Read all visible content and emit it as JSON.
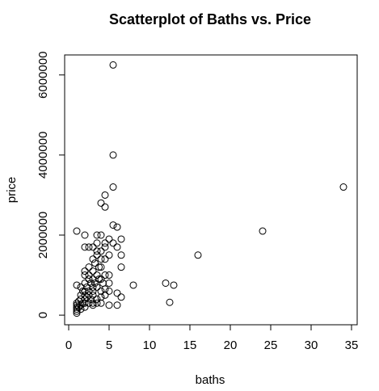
{
  "chart_data": {
    "type": "scatter",
    "title": "Scatterplot of Baths vs. Price",
    "x_label": "baths",
    "y_label": "price",
    "color": "#000000",
    "marker": "open-circle",
    "x": [
      5.5,
      5.5,
      5.5,
      4.5,
      4,
      4.5,
      34,
      24,
      16,
      12,
      13,
      12.5,
      8,
      1,
      2,
      2,
      2.5,
      5.5,
      6,
      6.5,
      6.5,
      6.5,
      6,
      5,
      5.5,
      6,
      6.5,
      6,
      5,
      1,
      1.5,
      1,
      1,
      1,
      1,
      1,
      1,
      1.25,
      1.25,
      1.5,
      1.5,
      1.5,
      1.5,
      1.75,
      1.75,
      2,
      2,
      2,
      2,
      2,
      2,
      2,
      2.25,
      2.25,
      2.5,
      2.5,
      2.5,
      2.5,
      2.5,
      2.75,
      2.75,
      3,
      3,
      3,
      3,
      3,
      3,
      3,
      3.25,
      3.25,
      3.5,
      3.5,
      3.5,
      3.5,
      3.5,
      3.5,
      3.75,
      3.75,
      4,
      4,
      4,
      4,
      4,
      4,
      4.25,
      4.5,
      4.5,
      4.5,
      4.5,
      4.5,
      5,
      5,
      5,
      5,
      3,
      3.5,
      4,
      2.5,
      2,
      3.5,
      4,
      4.5,
      3
    ],
    "y": [
      6250000,
      4000000,
      3200000,
      3000000,
      2800000,
      2700000,
      3200000,
      2100000,
      1500000,
      800000,
      750000,
      320000,
      750000,
      2100000,
      2000000,
      1700000,
      1700000,
      2250000,
      2200000,
      1900000,
      1500000,
      1200000,
      1700000,
      1900000,
      1800000,
      550000,
      450000,
      250000,
      250000,
      750000,
      700000,
      100000,
      200000,
      300000,
      150000,
      250000,
      50000,
      350000,
      200000,
      400000,
      250000,
      150000,
      500000,
      300000,
      600000,
      200000,
      400000,
      600000,
      800000,
      1000000,
      300000,
      500000,
      700000,
      450000,
      300000,
      600000,
      900000,
      1200000,
      500000,
      800000,
      400000,
      300000,
      500000,
      700000,
      900000,
      1100000,
      1400000,
      600000,
      800000,
      1300000,
      400000,
      700000,
      1000000,
      1500000,
      1800000,
      2000000,
      900000,
      1200000,
      300000,
      600000,
      900000,
      1200000,
      1600000,
      2000000,
      800000,
      500000,
      1000000,
      1400000,
      1700000,
      1800000,
      600000,
      1000000,
      1500000,
      800000,
      1700000,
      1600000,
      1400000,
      1000000,
      1100000,
      300000,
      450000,
      650000,
      250000
    ],
    "xlim": [
      -0.5,
      35.7
    ],
    "ylim": [
      -240000,
      6500000
    ],
    "xticks": [
      0,
      5,
      10,
      15,
      20,
      25,
      30,
      35
    ],
    "yticks": [
      0,
      2000000,
      4000000,
      6000000
    ]
  }
}
